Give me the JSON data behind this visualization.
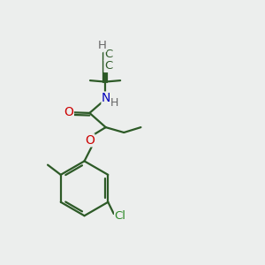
{
  "bg_color": "#eceeed",
  "bond_color": "#2d5a27",
  "o_color": "#cc0000",
  "n_color": "#0000bb",
  "cl_color": "#2d8a27",
  "h_color": "#666666",
  "line_width": 1.6,
  "font_size": 9.5,
  "xlim": [
    0,
    10
  ],
  "ylim": [
    0,
    10
  ]
}
